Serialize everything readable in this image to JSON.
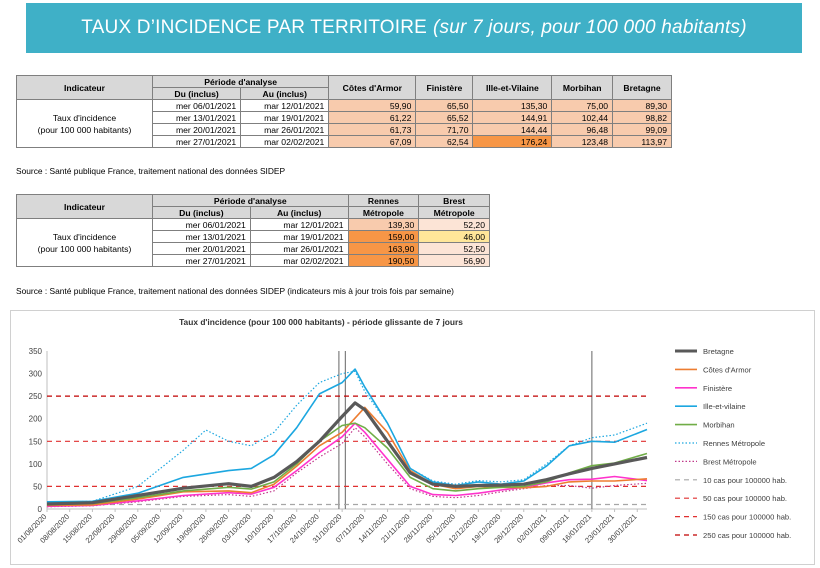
{
  "banner": {
    "title": "TAUX D’INCIDENCE PAR TERRITOIRE",
    "subtitle": "(sur 7 jours, pour 100 000 habitants)"
  },
  "table1": {
    "h_indicateur": "Indicateur",
    "h_periode": "Période d'analyse",
    "h_du": "Du (inclus)",
    "h_au": "Au (inclus)",
    "cols": [
      "Côtes d'Armor",
      "Finistère",
      "Ille-et-Vilaine",
      "Morbihan",
      "Bretagne"
    ],
    "label_line1": "Taux d'incidence",
    "label_line2": "(pour 100 000 habitants)",
    "rows": [
      {
        "du": "mer 06/01/2021",
        "au": "mar 12/01/2021",
        "values": [
          "59,90",
          "65,50",
          "135,30",
          "75,00",
          "89,30"
        ]
      },
      {
        "du": "mer 13/01/2021",
        "au": "mar 19/01/2021",
        "values": [
          "61,22",
          "65,52",
          "144,91",
          "102,44",
          "98,82"
        ]
      },
      {
        "du": "mer 20/01/2021",
        "au": "mar 26/01/2021",
        "values": [
          "61,73",
          "71,70",
          "144,44",
          "96,48",
          "99,09"
        ]
      },
      {
        "du": "mer 27/01/2021",
        "au": "mar 02/02/2021",
        "values": [
          "67,09",
          "62,54",
          "176,24",
          "123,48",
          "113,97"
        ]
      }
    ],
    "source": "Source : Santé publique France, traitement national des données SIDEP"
  },
  "table2": {
    "h_indicateur": "Indicateur",
    "h_periode": "Période d'analyse",
    "h_du": "Du (inclus)",
    "h_au": "Au (inclus)",
    "col1_l1": "Rennes",
    "col1_l2": "Métropole",
    "col2_l1": "Brest",
    "col2_l2": "Métropole",
    "label_line1": "Taux d'incidence",
    "label_line2": "(pour 100 000 habitants)",
    "rows": [
      {
        "du": "mer 06/01/2021",
        "au": "mar 12/01/2021",
        "values": [
          "139,30",
          "52,20"
        ]
      },
      {
        "du": "mer 13/01/2021",
        "au": "mar 19/01/2021",
        "values": [
          "159,00",
          "46,00"
        ]
      },
      {
        "du": "mer 20/01/2021",
        "au": "mar 26/01/2021",
        "values": [
          "163,90",
          "52,50"
        ]
      },
      {
        "du": "mer 27/01/2021",
        "au": "mar 02/02/2021",
        "values": [
          "190,50",
          "56,90"
        ]
      }
    ],
    "source": "Source : Santé publique France, traitement national des données SIDEP (indicateurs mis à jour trois fois par semaine)"
  },
  "colors": {
    "bretagne": "#595959",
    "cotes": "#ed7d31",
    "finistere": "#ff33cc",
    "ille": "#1ca7e0",
    "morbihan": "#70ad47",
    "rennes": "#1ca7e0",
    "brest": "#c0398b",
    "ref10": "#a6a6a6",
    "ref": "#e03030",
    "ref250": "#c00000"
  },
  "chart_data": {
    "type": "line",
    "title": "Taux d'incidence (pour 100 000 habitants) - période glissante de 7 jours",
    "ylim": [
      0,
      350
    ],
    "yticks": [
      0,
      50,
      100,
      150,
      200,
      250,
      300,
      350
    ],
    "xlim": [
      "2020-08-01",
      "2021-02-02"
    ],
    "xtick_labels": [
      "01/08/2020",
      "08/08/2020",
      "15/08/2020",
      "22/08/2020",
      "29/08/2020",
      "05/09/2020",
      "12/09/2020",
      "19/09/2020",
      "26/09/2020",
      "03/10/2020",
      "10/10/2020",
      "17/10/2020",
      "24/10/2020",
      "31/10/2020",
      "07/11/2020",
      "14/11/2020",
      "21/11/2020",
      "28/11/2020",
      "05/12/2020",
      "12/12/2020",
      "19/12/2020",
      "26/12/2020",
      "02/01/2021",
      "09/01/2021",
      "16/01/2021",
      "23/01/2021",
      "30/01/2021"
    ],
    "vlines": [
      "2020-10-30",
      "2020-11-01",
      "2021-01-16"
    ],
    "series": [
      {
        "name": "Bretagne",
        "key": "bretagne",
        "style": "solid",
        "width": 3.2,
        "x": [
          "2020-08-01",
          "2020-08-15",
          "2020-08-29",
          "2020-09-12",
          "2020-09-26",
          "2020-10-03",
          "2020-10-10",
          "2020-10-17",
          "2020-10-24",
          "2020-10-31",
          "2020-11-04",
          "2020-11-07",
          "2020-11-14",
          "2020-11-21",
          "2020-11-28",
          "2020-12-05",
          "2020-12-12",
          "2020-12-19",
          "2020-12-26",
          "2021-01-02",
          "2021-01-09",
          "2021-01-16",
          "2021-01-23",
          "2021-02-02"
        ],
        "y": [
          11,
          14,
          30,
          46,
          56,
          50,
          70,
          105,
          150,
          205,
          235,
          220,
          150,
          80,
          55,
          50,
          52,
          53,
          55,
          65,
          78,
          90,
          100,
          114
        ]
      },
      {
        "name": "Côtes d'Armor",
        "key": "cotes",
        "style": "solid",
        "width": 1.6,
        "x": [
          "2020-08-01",
          "2020-08-15",
          "2020-08-29",
          "2020-09-12",
          "2020-09-26",
          "2020-10-03",
          "2020-10-10",
          "2020-10-17",
          "2020-10-24",
          "2020-10-31",
          "2020-11-07",
          "2020-11-14",
          "2020-11-21",
          "2020-11-28",
          "2020-12-05",
          "2020-12-12",
          "2020-12-19",
          "2020-12-26",
          "2021-01-02",
          "2021-01-09",
          "2021-01-16",
          "2021-01-23",
          "2021-02-02"
        ],
        "y": [
          8,
          9,
          22,
          38,
          40,
          36,
          55,
          95,
          140,
          170,
          225,
          170,
          85,
          55,
          45,
          50,
          48,
          47,
          50,
          60,
          62,
          62,
          67
        ]
      },
      {
        "name": "Finistère",
        "key": "finistere",
        "style": "solid",
        "width": 1.6,
        "x": [
          "2020-08-01",
          "2020-08-15",
          "2020-08-29",
          "2020-09-12",
          "2020-09-26",
          "2020-10-03",
          "2020-10-10",
          "2020-10-17",
          "2020-10-24",
          "2020-10-31",
          "2020-11-04",
          "2020-11-07",
          "2020-11-14",
          "2020-11-21",
          "2020-11-28",
          "2020-12-05",
          "2020-12-12",
          "2020-12-19",
          "2020-12-26",
          "2021-01-02",
          "2021-01-09",
          "2021-01-16",
          "2021-01-23",
          "2021-02-02"
        ],
        "y": [
          6,
          8,
          18,
          30,
          36,
          33,
          48,
          85,
          125,
          160,
          190,
          170,
          110,
          50,
          32,
          30,
          35,
          42,
          48,
          58,
          65,
          66,
          72,
          63
        ]
      },
      {
        "name": "Ille-et-vilaine",
        "key": "ille",
        "style": "solid",
        "width": 1.6,
        "x": [
          "2020-08-01",
          "2020-08-15",
          "2020-08-29",
          "2020-09-12",
          "2020-09-26",
          "2020-10-03",
          "2020-10-10",
          "2020-10-17",
          "2020-10-24",
          "2020-10-31",
          "2020-11-04",
          "2020-11-07",
          "2020-11-14",
          "2020-11-21",
          "2020-11-28",
          "2020-12-05",
          "2020-12-12",
          "2020-12-19",
          "2020-12-26",
          "2021-01-02",
          "2021-01-09",
          "2021-01-16",
          "2021-01-23",
          "2021-02-02"
        ],
        "y": [
          16,
          17,
          35,
          70,
          85,
          90,
          120,
          180,
          255,
          280,
          310,
          270,
          190,
          90,
          60,
          52,
          60,
          55,
          62,
          95,
          140,
          150,
          148,
          176
        ]
      },
      {
        "name": "Morbihan",
        "key": "morbihan",
        "style": "solid",
        "width": 1.6,
        "x": [
          "2020-08-01",
          "2020-08-15",
          "2020-08-29",
          "2020-09-12",
          "2020-09-26",
          "2020-10-03",
          "2020-10-10",
          "2020-10-17",
          "2020-10-24",
          "2020-10-31",
          "2020-11-04",
          "2020-11-07",
          "2020-11-14",
          "2020-11-21",
          "2020-11-28",
          "2020-12-05",
          "2020-12-12",
          "2020-12-19",
          "2020-12-26",
          "2021-01-02",
          "2021-01-09",
          "2021-01-16",
          "2021-01-23",
          "2021-02-02"
        ],
        "y": [
          10,
          12,
          25,
          40,
          48,
          44,
          60,
          100,
          150,
          185,
          190,
          180,
          135,
          70,
          45,
          40,
          45,
          48,
          50,
          60,
          80,
          96,
          102,
          123
        ]
      },
      {
        "name": "Rennes Métropole",
        "key": "rennes",
        "style": "dotted",
        "width": 1.2,
        "x": [
          "2020-08-01",
          "2020-08-15",
          "2020-08-29",
          "2020-09-12",
          "2020-09-19",
          "2020-09-26",
          "2020-10-03",
          "2020-10-10",
          "2020-10-17",
          "2020-10-24",
          "2020-10-31",
          "2020-11-04",
          "2020-11-07",
          "2020-11-14",
          "2020-11-21",
          "2020-11-28",
          "2020-12-05",
          "2020-12-12",
          "2020-12-19",
          "2020-12-26",
          "2021-01-02",
          "2021-01-09",
          "2021-01-16",
          "2021-01-23",
          "2021-02-02"
        ],
        "y": [
          15,
          17,
          50,
          130,
          175,
          150,
          140,
          170,
          230,
          280,
          300,
          305,
          260,
          190,
          90,
          62,
          55,
          63,
          60,
          65,
          100,
          140,
          158,
          164,
          190
        ]
      },
      {
        "name": "Brest Métropole",
        "key": "brest",
        "style": "dotted",
        "width": 1.2,
        "x": [
          "2020-08-01",
          "2020-08-15",
          "2020-08-29",
          "2020-09-12",
          "2020-09-26",
          "2020-10-03",
          "2020-10-10",
          "2020-10-17",
          "2020-10-24",
          "2020-10-31",
          "2020-11-04",
          "2020-11-07",
          "2020-11-14",
          "2020-11-21",
          "2020-11-28",
          "2020-12-05",
          "2020-12-12",
          "2020-12-19",
          "2020-12-26",
          "2021-01-02",
          "2021-01-09",
          "2021-01-16",
          "2021-01-23",
          "2021-02-02"
        ],
        "y": [
          5,
          7,
          16,
          28,
          32,
          28,
          40,
          80,
          115,
          145,
          180,
          160,
          100,
          45,
          28,
          25,
          30,
          38,
          45,
          52,
          52,
          46,
          52,
          57
        ]
      },
      {
        "name": "10 cas pour 100000 hab.",
        "key": "ref10",
        "style": "dashed",
        "width": 1.2,
        "x": [
          "2020-08-01",
          "2021-02-02"
        ],
        "y": [
          10,
          10
        ]
      },
      {
        "name": "50 cas pour 100000 hab.",
        "key": "ref",
        "style": "dashed",
        "width": 1.2,
        "x": [
          "2020-08-01",
          "2021-02-02"
        ],
        "y": [
          50,
          50
        ]
      },
      {
        "name": "150 cas pour 100000 hab.",
        "key": "ref",
        "style": "dashed",
        "width": 1.2,
        "x": [
          "2020-08-01",
          "2021-02-02"
        ],
        "y": [
          150,
          150
        ]
      },
      {
        "name": "250 cas pour 100000 hab.",
        "key": "ref250",
        "style": "dashed",
        "width": 1.2,
        "x": [
          "2020-08-01",
          "2021-02-02"
        ],
        "y": [
          250,
          250
        ]
      }
    ],
    "grid": false,
    "legend": "right"
  }
}
